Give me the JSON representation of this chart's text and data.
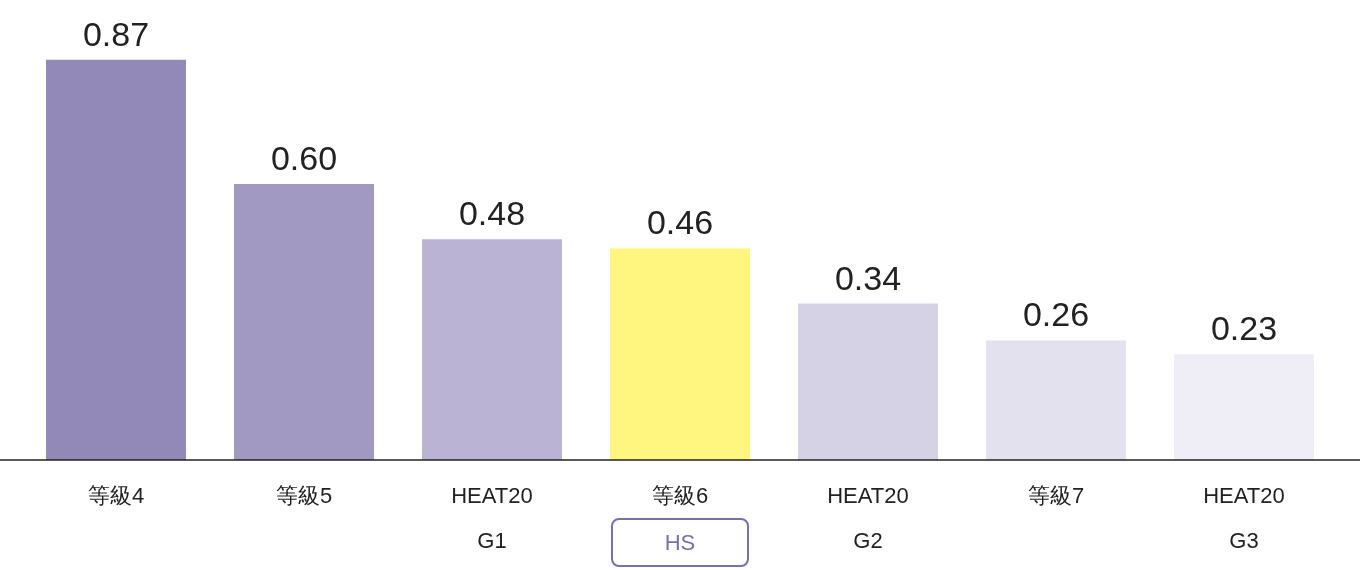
{
  "chart_data": {
    "type": "bar",
    "categories": [
      "等級4",
      "等級5",
      "HEAT20\nG1",
      "等級6",
      "HEAT20\nG2",
      "等級7",
      "HEAT20\nG3"
    ],
    "values": [
      0.87,
      0.6,
      0.48,
      0.46,
      0.34,
      0.26,
      0.23
    ],
    "colors": [
      "#9289b9",
      "#a199c2",
      "#bab3d4",
      "#fff680",
      "#d6d2e5",
      "#e4e1ef",
      "#efedf5"
    ],
    "value_labels": [
      "0.87",
      "0.60",
      "0.48",
      "0.46",
      "0.34",
      "0.26",
      "0.23"
    ],
    "annotations": [
      "HS"
    ]
  }
}
